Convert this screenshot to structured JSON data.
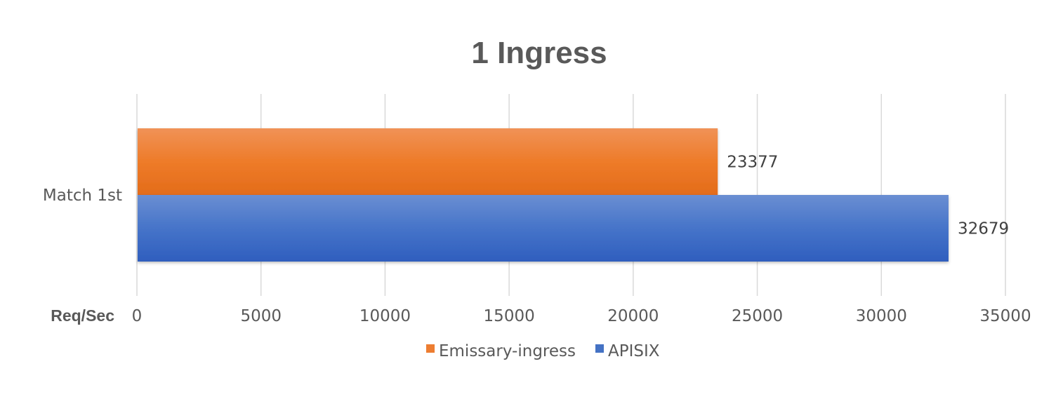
{
  "chart_data": {
    "type": "bar",
    "orientation": "horizontal",
    "title": "1 Ingress",
    "xlabel": "Req/Sec",
    "ylabel": "",
    "categories": [
      "Match 1st"
    ],
    "series": [
      {
        "name": "Emissary-ingress",
        "values": [
          23377
        ],
        "color": "#ED7D31"
      },
      {
        "name": "APISIX",
        "values": [
          32679
        ],
        "color": "#4472C4"
      }
    ],
    "xlim": [
      0,
      35000
    ],
    "x_ticks": [
      0,
      5000,
      10000,
      15000,
      20000,
      25000,
      30000,
      35000
    ],
    "tick_labels": [
      "0",
      "5000",
      "10000",
      "15000",
      "20000",
      "25000",
      "30000",
      "35000"
    ],
    "value_labels": [
      "23377",
      "32679"
    ],
    "grid": true,
    "legend": "bottom"
  }
}
